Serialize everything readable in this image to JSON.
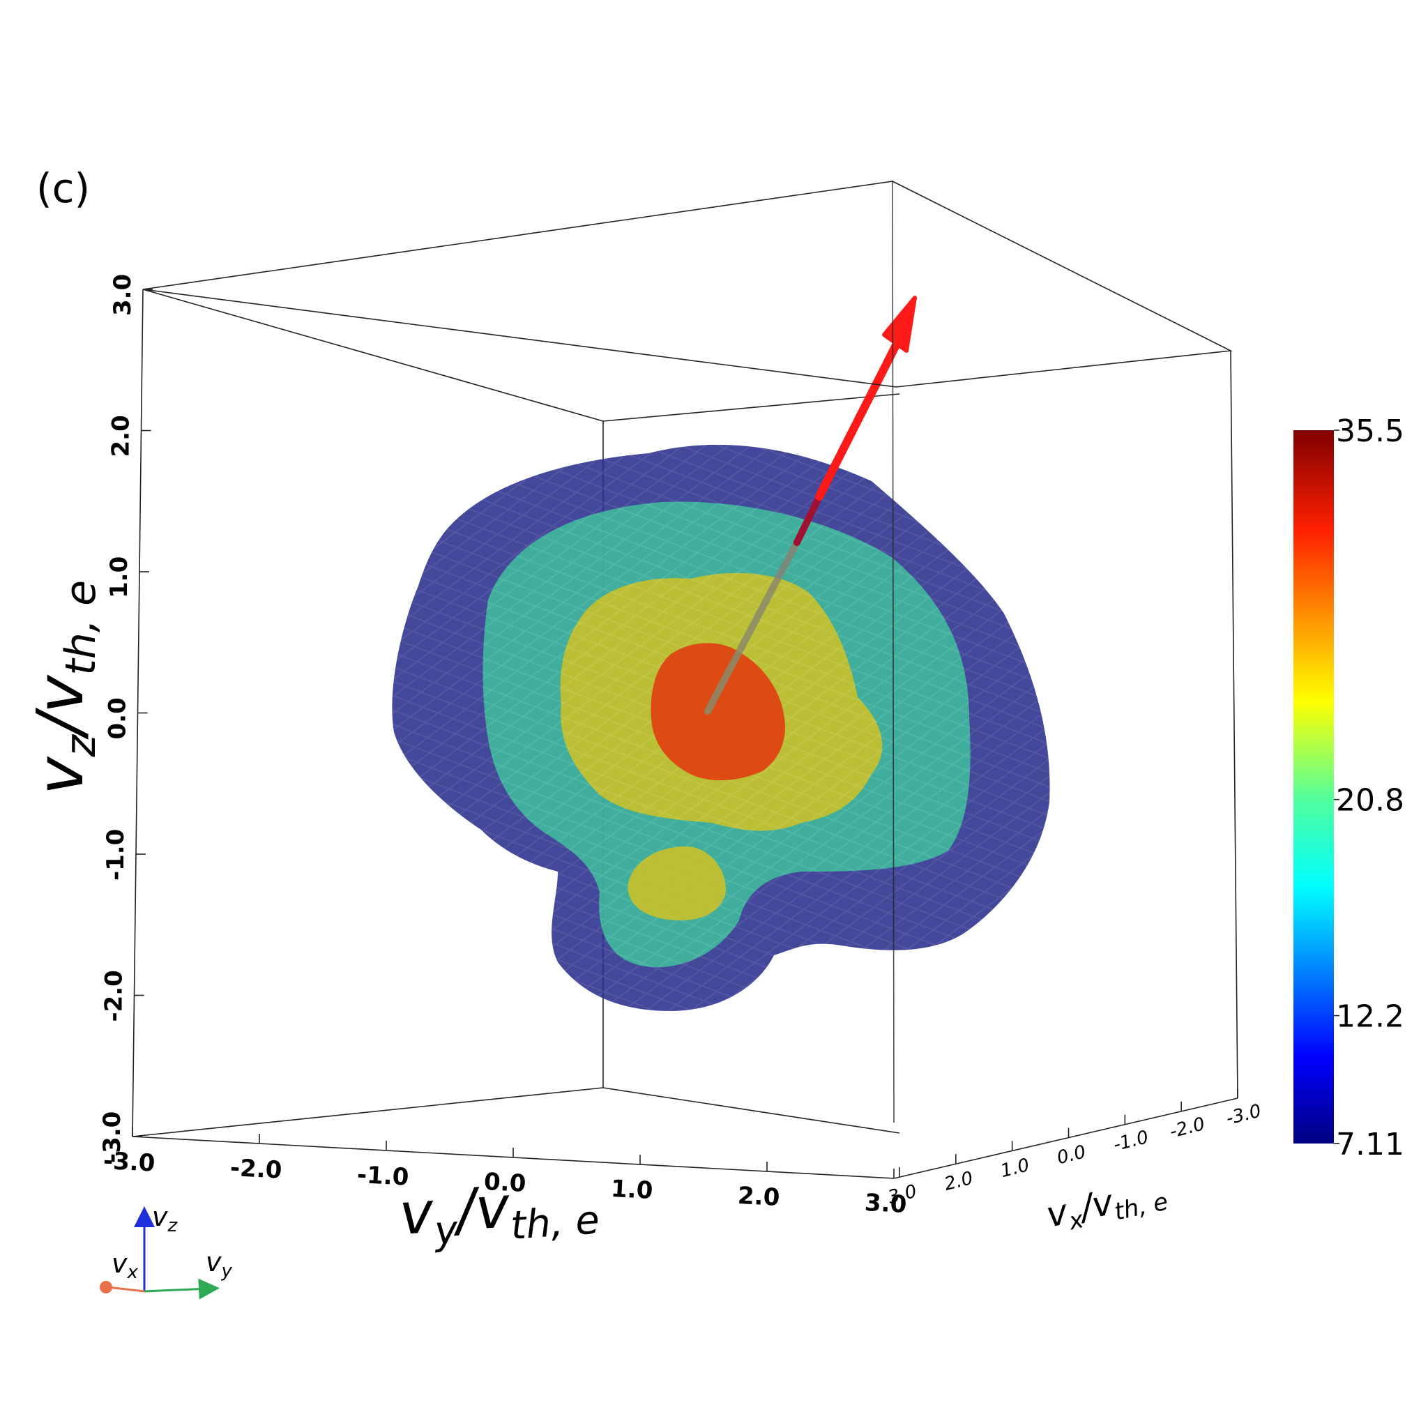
{
  "panel_label": "(c)",
  "colors": {
    "frame": "#222222",
    "iso_outer": "#2a2f8c",
    "iso_mid": "#3fbf9e",
    "iso_inner": "#c9c12a",
    "iso_core": "#e04010",
    "arrow": "#ff1a1a"
  },
  "chart_data": {
    "type": "3d-isosurface",
    "description_fields": {
      "quantity": "electron velocity distribution isosurfaces"
    },
    "axes": {
      "x": {
        "label_text": "v",
        "label_sub": "x",
        "label_tail": "/v",
        "label_tail_sub": "th, e",
        "range": [
          -3.0,
          3.0
        ],
        "ticks": [
          "3.0",
          "2.0",
          "1.0",
          "0.0",
          "-1.0",
          "-2.0",
          "-3.0"
        ]
      },
      "y": {
        "label_text": "v",
        "label_sub": "y",
        "label_tail": "/v",
        "label_tail_sub": "th, e",
        "range": [
          -3.0,
          3.0
        ],
        "ticks": [
          "-3.0",
          "-2.0",
          "-1.0",
          "0.0",
          "1.0",
          "2.0",
          "3.0"
        ]
      },
      "z": {
        "label_text": "v",
        "label_sub": "z",
        "label_tail": "/v",
        "label_tail_sub": "th, e",
        "range": [
          -3.0,
          3.0
        ],
        "ticks": [
          "3.0",
          "2.0",
          "1.0",
          "0.0",
          "-1.0",
          "-2.0",
          "-3.0"
        ]
      }
    },
    "isosurface_levels": [
      7.11,
      12.2,
      20.8,
      30.0
    ],
    "colorbar": {
      "min": 7.11,
      "max": 35.5,
      "tick_labels": [
        "35.5",
        "20.8",
        "12.2",
        "7.11"
      ],
      "tick_values": [
        35.5,
        20.8,
        12.2,
        7.11
      ],
      "colormap": "jet"
    },
    "vector": {
      "description": "red arrow from origin pointing up and toward +vz, -vy side",
      "direction_hint": "up-right"
    }
  },
  "orientation_widget": {
    "z": "v",
    "z_sub": "z",
    "x": "v",
    "x_sub": "x",
    "y": "v",
    "y_sub": "y"
  }
}
